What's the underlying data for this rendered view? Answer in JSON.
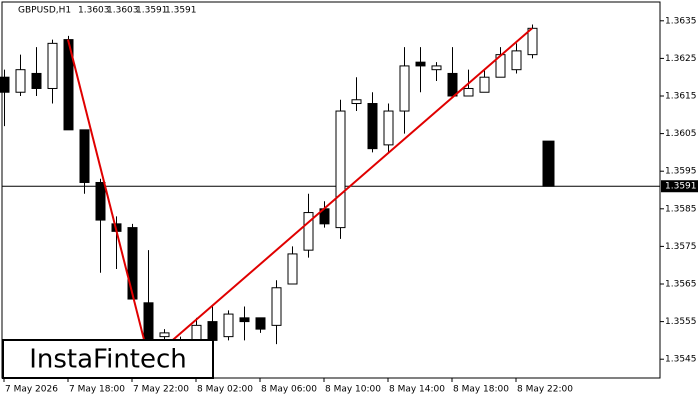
{
  "chart_data": {
    "type": "candlestick",
    "symbol": "GBPUSD,H1",
    "categories": [
      "7 May 2026",
      null,
      null,
      null,
      "7 May 18:00",
      null,
      null,
      null,
      "7 May 22:00",
      null,
      null,
      null,
      "8 May 02:00",
      null,
      null,
      null,
      "8 May 06:00",
      null,
      null,
      null,
      "8 May 10:00",
      null,
      null,
      null,
      "8 May 14:00",
      null,
      null,
      null,
      "8 May 18:00",
      null,
      null,
      null,
      "8 May 22:00",
      null,
      null
    ],
    "open": [
      1.362,
      1.3616,
      1.3621,
      1.3617,
      1.363,
      1.3606,
      1.3592,
      1.3581,
      1.358,
      1.356,
      1.3551,
      1.3549,
      1.355,
      1.3555,
      1.3551,
      1.3556,
      1.3556,
      1.3554,
      1.3565,
      1.3574,
      1.3585,
      1.358,
      1.3613,
      1.3613,
      1.3602,
      1.3611,
      1.3624,
      1.3622,
      1.3621,
      1.3615,
      1.3616,
      1.362,
      1.3622,
      1.3626,
      1.3603
    ],
    "high": [
      1.3622,
      1.3626,
      1.3628,
      1.363,
      1.3631,
      1.3606,
      1.3593,
      1.3583,
      1.3581,
      1.3574,
      1.3553,
      1.3551,
      1.3556,
      1.3559,
      1.3558,
      1.3559,
      1.3556,
      1.3566,
      1.3575,
      1.3589,
      1.3587,
      1.3614,
      1.362,
      1.3616,
      1.3613,
      1.3628,
      1.3628,
      1.3624,
      1.3628,
      1.3622,
      1.3622,
      1.3628,
      1.3629,
      1.3634,
      1.3603
    ],
    "low": [
      1.3607,
      1.3615,
      1.3615,
      1.3613,
      1.3606,
      1.3589,
      1.3568,
      1.3569,
      1.3561,
      1.3546,
      1.3546,
      1.3547,
      1.3546,
      1.3548,
      1.355,
      1.355,
      1.3552,
      1.3549,
      1.3565,
      1.3572,
      1.358,
      1.3577,
      1.3611,
      1.36,
      1.36,
      1.3605,
      1.3616,
      1.3619,
      1.3615,
      1.3615,
      1.3616,
      1.362,
      1.3621,
      1.3625,
      1.3591
    ],
    "close": [
      1.3616,
      1.3622,
      1.3617,
      1.3629,
      1.3606,
      1.3592,
      1.3582,
      1.3579,
      1.3561,
      1.355,
      1.3552,
      1.355,
      1.3554,
      1.355,
      1.3557,
      1.3555,
      1.3553,
      1.3564,
      1.3573,
      1.3584,
      1.3581,
      1.3611,
      1.3614,
      1.3601,
      1.3611,
      1.3623,
      1.3623,
      1.3623,
      1.3615,
      1.3617,
      1.362,
      1.3626,
      1.3627,
      1.3633,
      1.3591
    ],
    "bull_color": "#ffffff",
    "bear_color": "#000000",
    "ylim": [
      1.354,
      1.364
    ],
    "yticks": [
      1.3545,
      1.3555,
      1.3565,
      1.3575,
      1.3585,
      1.3595,
      1.3605,
      1.3615,
      1.3625,
      1.3635
    ],
    "current_price": 1.3591,
    "trendlines": [
      {
        "x": [
          4,
          9
        ],
        "y": [
          1.363,
          1.3546
        ],
        "color": "#e00000"
      },
      {
        "x": [
          10.25,
          33
        ],
        "y": [
          1.3549,
          1.3633
        ],
        "color": "#e00000"
      }
    ],
    "watermark": "InstaFintech"
  }
}
